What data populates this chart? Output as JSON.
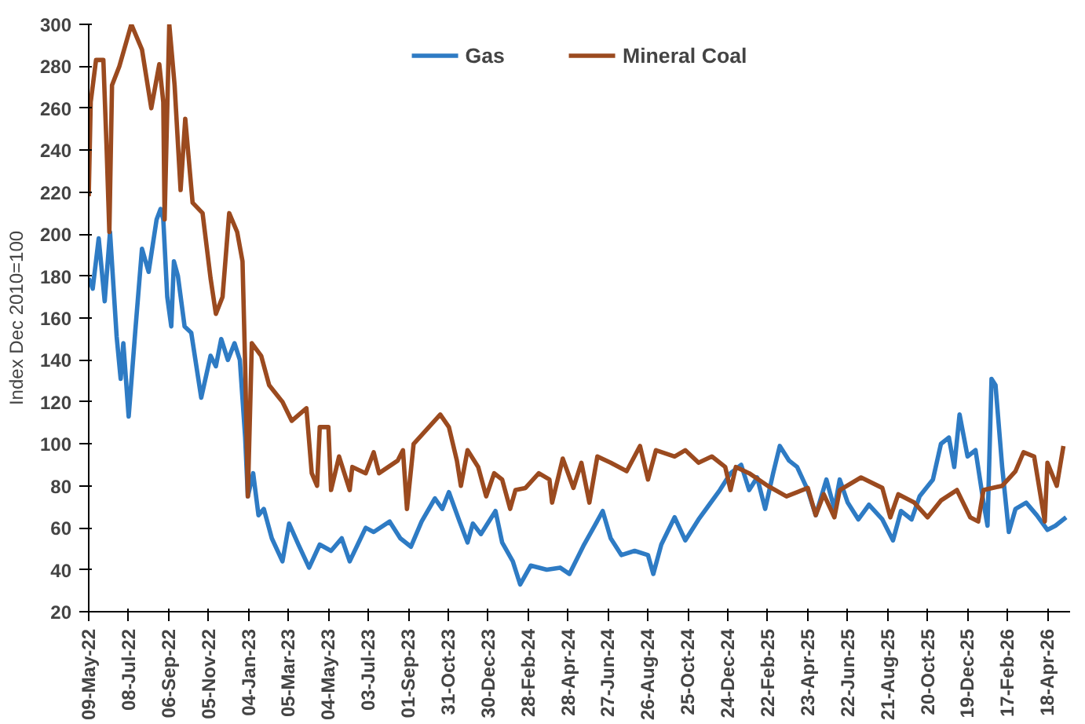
{
  "chart_data": {
    "type": "line",
    "ylabel": "Index Dec 2010=100",
    "legend": "top",
    "grid": false,
    "xlim": [
      "2022-05-09",
      "2026-05-22"
    ],
    "ylim": [
      20,
      300
    ],
    "yticks": [
      20,
      40,
      60,
      80,
      100,
      120,
      140,
      160,
      180,
      200,
      220,
      240,
      260,
      280,
      300
    ],
    "xticks": [
      {
        "value": "2022-05-09",
        "label": "09-May-22"
      },
      {
        "value": "2022-07-08",
        "label": "08-Jul-22"
      },
      {
        "value": "2022-09-06",
        "label": "06-Sep-22"
      },
      {
        "value": "2022-11-05",
        "label": "05-Nov-22"
      },
      {
        "value": "2023-01-04",
        "label": "04-Jan-23"
      },
      {
        "value": "2023-03-05",
        "label": "05-Mar-23"
      },
      {
        "value": "2023-05-04",
        "label": "04-May-23"
      },
      {
        "value": "2023-07-03",
        "label": "03-Jul-23"
      },
      {
        "value": "2023-09-01",
        "label": "01-Sep-23"
      },
      {
        "value": "2023-10-31",
        "label": "31-Oct-23"
      },
      {
        "value": "2023-12-30",
        "label": "30-Dec-23"
      },
      {
        "value": "2024-02-28",
        "label": "28-Feb-24"
      },
      {
        "value": "2024-04-28",
        "label": "28-Apr-24"
      },
      {
        "value": "2024-06-27",
        "label": "27-Jun-24"
      },
      {
        "value": "2024-08-26",
        "label": "26-Aug-24"
      },
      {
        "value": "2024-10-25",
        "label": "25-Oct-24"
      },
      {
        "value": "2024-12-24",
        "label": "24-Dec-24"
      },
      {
        "value": "2025-02-22",
        "label": "22-Feb-25"
      },
      {
        "value": "2025-04-23",
        "label": "23-Apr-25"
      },
      {
        "value": "2025-06-22",
        "label": "22-Jun-25"
      },
      {
        "value": "2025-08-21",
        "label": "21-Aug-25"
      },
      {
        "value": "2025-10-20",
        "label": "20-Oct-25"
      },
      {
        "value": "2025-12-19",
        "label": "19-Dec-25"
      },
      {
        "value": "2026-02-17",
        "label": "17-Feb-26"
      },
      {
        "value": "2026-04-18",
        "label": "18-Apr-26"
      }
    ],
    "series": [
      {
        "name": "Gas",
        "color": "#2e7bc4",
        "x": [
          "2022-05-09",
          "2022-05-15",
          "2022-05-24",
          "2022-06-02",
          "2022-06-10",
          "2022-06-20",
          "2022-06-26",
          "2022-06-30",
          "2022-07-08",
          "2022-07-18",
          "2022-07-28",
          "2022-08-07",
          "2022-08-19",
          "2022-08-25",
          "2022-08-29",
          "2022-09-04",
          "2022-09-10",
          "2022-09-14",
          "2022-09-20",
          "2022-09-30",
          "2022-10-10",
          "2022-10-25",
          "2022-11-08",
          "2022-11-16",
          "2022-11-24",
          "2022-12-04",
          "2022-12-14",
          "2022-12-22",
          "2022-12-30",
          "2023-01-03",
          "2023-01-11",
          "2023-01-19",
          "2023-01-27",
          "2023-02-08",
          "2023-02-24",
          "2023-03-06",
          "2023-03-20",
          "2023-04-05",
          "2023-04-21",
          "2023-05-08",
          "2023-05-24",
          "2023-06-05",
          "2023-06-17",
          "2023-06-29",
          "2023-07-11",
          "2023-08-04",
          "2023-08-20",
          "2023-09-05",
          "2023-09-21",
          "2023-10-11",
          "2023-10-22",
          "2023-11-01",
          "2023-11-17",
          "2023-11-29",
          "2023-12-07",
          "2023-12-19",
          "2024-01-10",
          "2024-01-20",
          "2024-02-05",
          "2024-02-16",
          "2024-03-03",
          "2024-03-27",
          "2024-04-16",
          "2024-04-30",
          "2024-05-22",
          "2024-06-07",
          "2024-06-19",
          "2024-07-01",
          "2024-07-17",
          "2024-08-06",
          "2024-08-26",
          "2024-09-03",
          "2024-09-15",
          "2024-10-05",
          "2024-10-21",
          "2024-11-10",
          "2024-11-26",
          "2024-12-12",
          "2024-12-28",
          "2025-01-13",
          "2025-01-25",
          "2025-02-06",
          "2025-02-18",
          "2025-03-02",
          "2025-03-12",
          "2025-03-26",
          "2025-04-07",
          "2025-04-23",
          "2025-05-05",
          "2025-05-21",
          "2025-06-02",
          "2025-06-10",
          "2025-06-22",
          "2025-07-08",
          "2025-07-24",
          "2025-08-13",
          "2025-08-29",
          "2025-09-10",
          "2025-09-26",
          "2025-10-08",
          "2025-10-28",
          "2025-11-09",
          "2025-11-21",
          "2025-11-29",
          "2025-12-07",
          "2025-12-19",
          "2025-12-31",
          "2026-01-12",
          "2026-01-18",
          "2026-01-24",
          "2026-01-30",
          "2026-02-09",
          "2026-02-19",
          "2026-03-01",
          "2026-03-17",
          "2026-04-02",
          "2026-04-18",
          "2026-04-30",
          "2026-05-16"
        ],
        "values": [
          179,
          174,
          198,
          168,
          201,
          151,
          131,
          148,
          113,
          154,
          193,
          182,
          207,
          212,
          207,
          170,
          156,
          187,
          180,
          156,
          153,
          122,
          142,
          137,
          150,
          140,
          148,
          140,
          103,
          75,
          86,
          66,
          69,
          55,
          44,
          62,
          52,
          41,
          52,
          49,
          55,
          44,
          52,
          60,
          58,
          63,
          55,
          51,
          63,
          74,
          69,
          77,
          63,
          53,
          62,
          57,
          68,
          53,
          44,
          33,
          42,
          40,
          41,
          38,
          52,
          61,
          68,
          55,
          47,
          49,
          47,
          38,
          52,
          65,
          54,
          64,
          71,
          78,
          86,
          90,
          78,
          84,
          69,
          86,
          99,
          92,
          89,
          78,
          66,
          83,
          69,
          83,
          72,
          64,
          71,
          64,
          54,
          68,
          64,
          75,
          83,
          100,
          103,
          89,
          114,
          94,
          97,
          72,
          61,
          131,
          128,
          89,
          58,
          69,
          72,
          66,
          59,
          61,
          65
        ]
      },
      {
        "name": "Mineral Coal",
        "color": "#9b4a1f",
        "x": [
          "2022-05-09",
          "2022-05-12",
          "2022-05-20",
          "2022-05-31",
          "2022-06-05",
          "2022-06-09",
          "2022-06-13",
          "2022-06-24",
          "2022-07-12",
          "2022-07-28",
          "2022-08-11",
          "2022-08-23",
          "2022-08-29",
          "2022-08-31",
          "2022-09-07",
          "2022-09-15",
          "2022-09-24",
          "2022-10-01",
          "2022-10-12",
          "2022-10-27",
          "2022-11-08",
          "2022-11-16",
          "2022-11-26",
          "2022-12-06",
          "2022-12-18",
          "2022-12-26",
          "2022-12-30",
          "2023-01-03",
          "2023-01-09",
          "2023-01-23",
          "2023-02-04",
          "2023-02-24",
          "2023-03-10",
          "2023-04-01",
          "2023-04-09",
          "2023-04-17",
          "2023-04-21",
          "2023-05-04",
          "2023-05-08",
          "2023-05-20",
          "2023-06-05",
          "2023-06-09",
          "2023-06-29",
          "2023-07-11",
          "2023-07-19",
          "2023-08-16",
          "2023-08-24",
          "2023-08-30",
          "2023-09-09",
          "2023-09-29",
          "2023-10-19",
          "2023-11-01",
          "2023-11-13",
          "2023-11-19",
          "2023-11-29",
          "2023-12-15",
          "2023-12-27",
          "2024-01-08",
          "2024-01-20",
          "2024-02-01",
          "2024-02-09",
          "2024-02-24",
          "2024-03-15",
          "2024-03-31",
          "2024-04-04",
          "2024-04-20",
          "2024-05-06",
          "2024-05-18",
          "2024-05-30",
          "2024-06-11",
          "2024-07-01",
          "2024-07-25",
          "2024-08-14",
          "2024-08-26",
          "2024-09-07",
          "2024-10-05",
          "2024-10-21",
          "2024-11-10",
          "2024-11-30",
          "2024-12-20",
          "2024-12-28",
          "2025-01-05",
          "2025-01-25",
          "2025-02-22",
          "2025-03-22",
          "2025-04-23",
          "2025-05-05",
          "2025-05-17",
          "2025-06-02",
          "2025-06-10",
          "2025-07-12",
          "2025-08-13",
          "2025-08-25",
          "2025-09-06",
          "2025-09-30",
          "2025-10-20",
          "2025-11-09",
          "2025-12-03",
          "2025-12-23",
          "2026-01-04",
          "2026-01-12",
          "2026-02-09",
          "2026-03-01",
          "2026-03-13",
          "2026-03-29",
          "2026-04-14",
          "2026-04-18",
          "2026-05-02",
          "2026-05-12"
        ],
        "values": [
          218,
          263,
          283,
          283,
          240,
          201,
          271,
          280,
          300,
          288,
          260,
          281,
          263,
          207,
          300,
          271,
          221,
          255,
          215,
          210,
          179,
          162,
          170,
          210,
          201,
          187,
          137,
          75,
          148,
          142,
          128,
          120,
          111,
          117,
          86,
          80,
          108,
          108,
          78,
          94,
          78,
          89,
          86,
          96,
          86,
          92,
          97,
          69,
          100,
          107,
          114,
          108,
          92,
          80,
          97,
          89,
          75,
          86,
          83,
          69,
          78,
          79,
          86,
          83,
          72,
          93,
          79,
          91,
          72,
          94,
          91,
          87,
          99,
          83,
          97,
          94,
          97,
          91,
          94,
          89,
          78,
          89,
          86,
          80,
          75,
          79,
          66,
          76,
          65,
          78,
          84,
          79,
          65,
          76,
          72,
          65,
          73,
          78,
          65,
          63,
          78,
          80,
          87,
          96,
          94,
          63,
          91,
          80,
          99
        ]
      }
    ]
  }
}
